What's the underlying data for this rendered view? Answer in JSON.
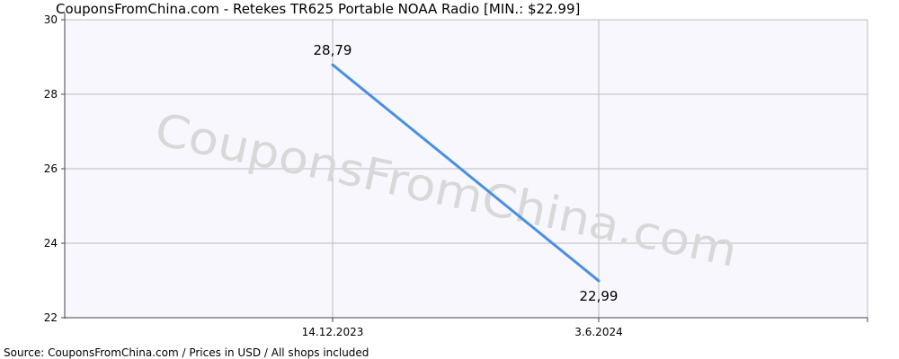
{
  "chart_data": {
    "type": "line",
    "title": "CouponsFromChina.com - Retekes TR625 Portable NOAA Radio [MIN.: $22.99]",
    "watermark": "CouponsFromChina.com",
    "footer": "Source:  CouponsFromChina.com / Prices in USD / All shops included",
    "x_labels": [
      "14.12.2023",
      "3.6.2024"
    ],
    "y_ticks": [
      "22",
      "24",
      "26",
      "28",
      "30"
    ],
    "ylim": [
      22,
      30
    ],
    "grid": true,
    "series": [
      {
        "values": [
          28.79,
          22.99
        ],
        "labels": [
          "28,79",
          "22,99"
        ],
        "color": "#4a8fe2"
      }
    ],
    "colors": {
      "plot_bg": "#f7f7fd",
      "grid": "#bdbdbd",
      "axis": "#444444",
      "watermark": "#d8d8d8"
    }
  }
}
